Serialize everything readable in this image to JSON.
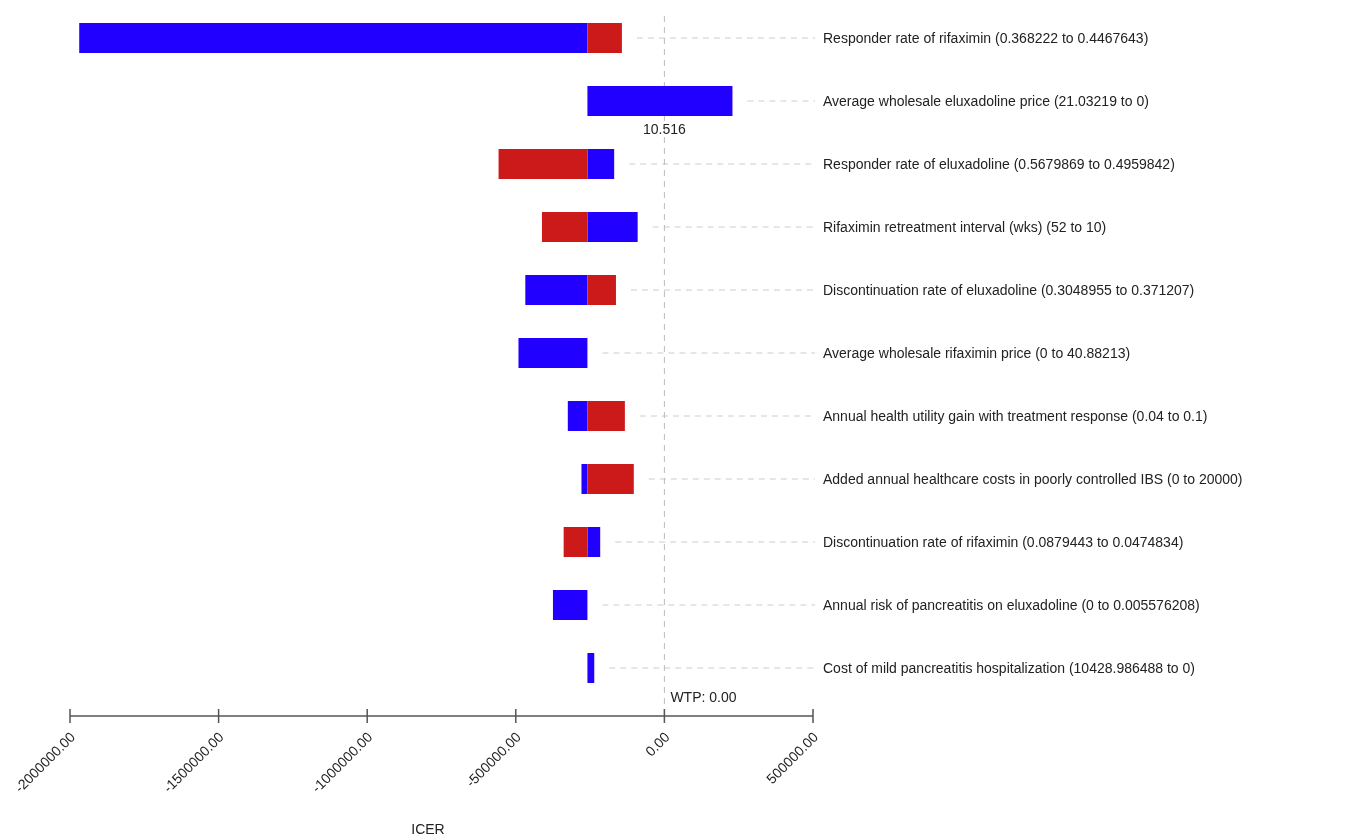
{
  "chart_data": {
    "type": "bar",
    "orientation": "horizontal",
    "xlabel": "ICER",
    "categories": [
      "Responder rate of rifaximin (0.368222 to 0.4467643)",
      "Average wholesale eluxadoline price (21.03219 to 0)",
      "Responder rate of eluxadoline (0.5679869 to 0.4959842)",
      "Rifaximin retreatment interval (wks) (52 to 10)",
      "Discontinuation rate of eluxadoline (0.3048955 to 0.371207)",
      "Average wholesale rifaximin price (0 to 40.88213)",
      "Annual health utility gain with treatment response (0.04 to 0.1)",
      "Added annual healthcare costs in poorly controlled IBS (0 to 20000)",
      "Discontinuation rate of rifaximin (0.0879443 to 0.0474834)",
      "Annual risk of pancreatitis on eluxadoline (0 to 0.005576208)",
      "Cost of mild pancreatitis hospitalization (10428.986488 to 0)"
    ],
    "series": [
      {
        "color": "#2200ff",
        "base": [
          -259000,
          -259000,
          -259000,
          -259000,
          -259000,
          -259000,
          -259000,
          -259000,
          -259000,
          -259000,
          -259000
        ],
        "values": [
          -1710000,
          488000,
          90000,
          169000,
          -209000,
          -232000,
          -66000,
          -20000,
          43000,
          -116000,
          23000
        ]
      },
      {
        "color": "#cc1a1a",
        "base": [
          -259000,
          null,
          -259000,
          -259000,
          -259000,
          null,
          -259000,
          -259000,
          -259000,
          null,
          null
        ],
        "values": [
          116000,
          null,
          -299000,
          -153000,
          96000,
          null,
          126000,
          156000,
          -80000,
          null,
          null
        ]
      }
    ],
    "xlim": [
      -2000000,
      500000
    ],
    "xticks": [
      {
        "value": -2000000,
        "label": "-2000000.00"
      },
      {
        "value": -1500000,
        "label": "-1500000.00"
      },
      {
        "value": -1000000,
        "label": "-1000000.00"
      },
      {
        "value": -500000,
        "label": "-500000.00"
      },
      {
        "value": 0,
        "label": "0.00"
      },
      {
        "value": 500000,
        "label": "500000.00"
      }
    ],
    "ref_lines": [
      {
        "axis": "x",
        "value": 0,
        "label": "WTP: 0.00",
        "color": "#bbbbbb",
        "line_style": "dashed"
      }
    ],
    "annotations": [
      {
        "text": "10.516",
        "x": 0,
        "y": "Average wholesale eluxadoline price (21.03219 to 0)"
      }
    ],
    "grid": false
  }
}
